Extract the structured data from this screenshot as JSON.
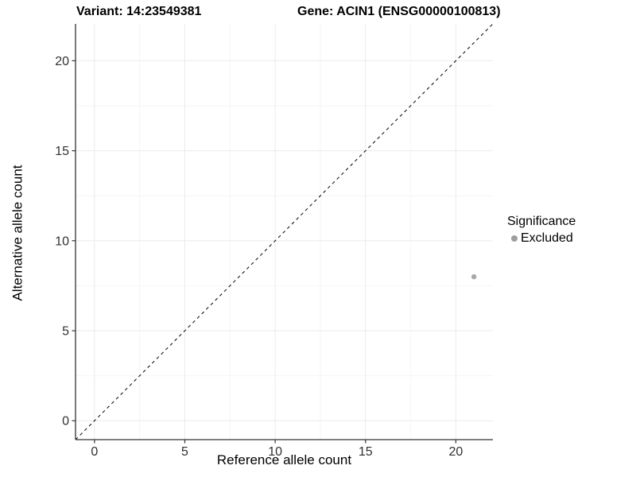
{
  "header": {
    "variant_title": "Variant: 14:23549381",
    "gene_title": "Gene: ACIN1 (ENSG00000100813)"
  },
  "chart_data": {
    "type": "scatter",
    "title": "Variant: 14:23549381   Gene: ACIN1 (ENSG00000100813)",
    "xlabel": "Reference allele count",
    "ylabel": "Alternative allele count",
    "xlim": [
      -1.05,
      22.05
    ],
    "ylim": [
      -1.05,
      22.05
    ],
    "x_ticks": [
      0,
      5,
      10,
      15,
      20
    ],
    "y_ticks": [
      0,
      5,
      10,
      15,
      20
    ],
    "x_minor_ticks": [
      2.5,
      7.5,
      12.5,
      17.5
    ],
    "y_minor_ticks": [
      2.5,
      7.5,
      12.5,
      17.5
    ],
    "grid": true,
    "legend_position": "right",
    "identity_line": {
      "style": "dashed",
      "x1": -1.05,
      "y1": -1.05,
      "x2": 22.05,
      "y2": 22.05
    },
    "series": [
      {
        "name": "Excluded",
        "color": "#9e9e9e",
        "points": [
          {
            "x": 21,
            "y": 8
          }
        ]
      }
    ],
    "legend": {
      "title": "Significance",
      "entries": [
        {
          "label": "Excluded",
          "color": "#9e9e9e"
        }
      ]
    },
    "style": {
      "point_color": "#9e9e9e",
      "axis_line_color": "#333333",
      "tick_color": "#333333",
      "tick_label_color": "#303030",
      "grid_major_color": "#ebebeb",
      "grid_minor_color": "#f5f5f5",
      "identity_line_color": "#000000",
      "background_color": "#ffffff"
    }
  }
}
